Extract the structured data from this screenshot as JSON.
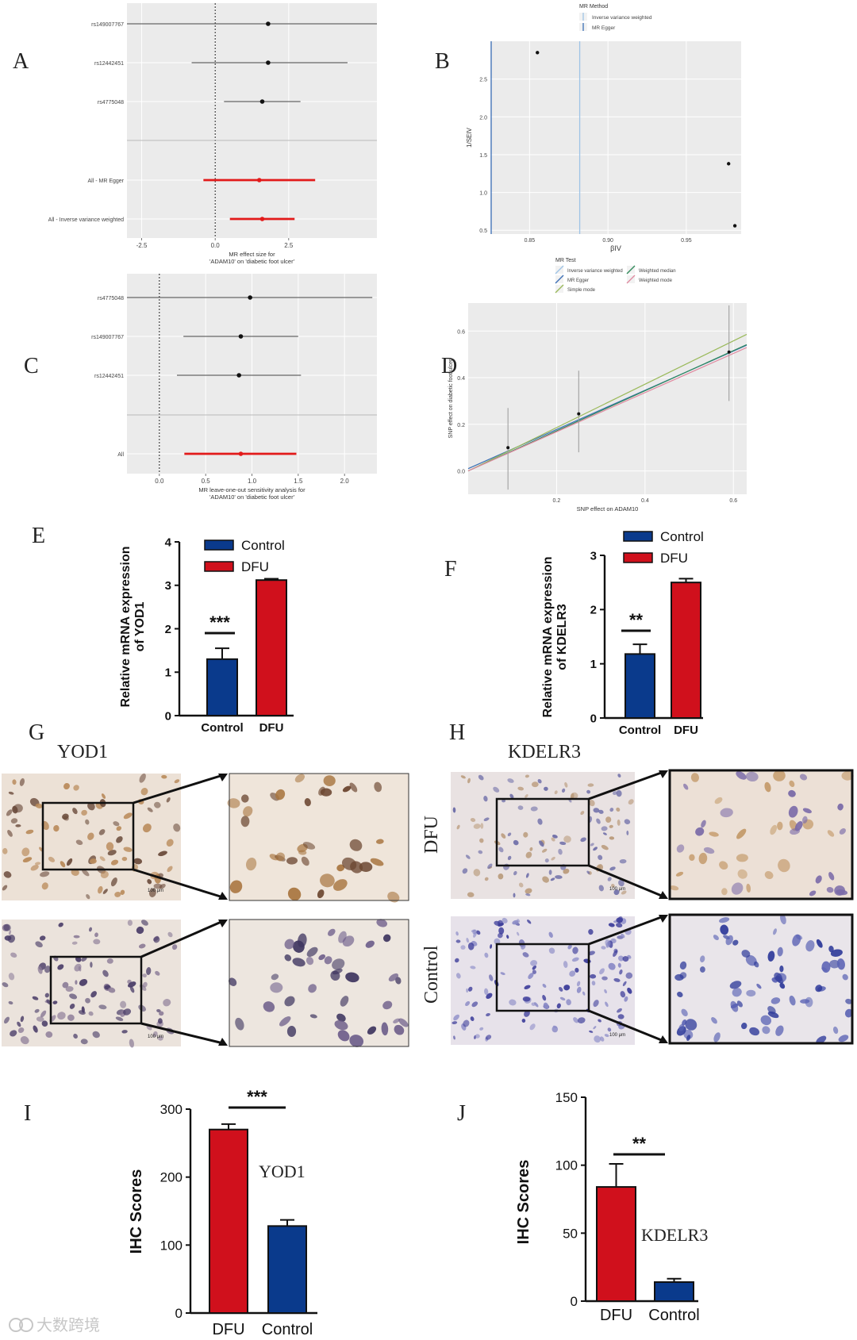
{
  "panels": {
    "a": "A",
    "b": "B",
    "c": "C",
    "d": "D",
    "e": "E",
    "f": "F",
    "g": "G",
    "h": "H",
    "i": "I",
    "j": "J"
  },
  "watermark": "大数跨境",
  "histology": {
    "yod1_title": "YOD1",
    "kdelr3_title": "KDELR3",
    "row_dfu": "DFU",
    "row_control": "Control",
    "scale_bar": "100 μm"
  },
  "colors": {
    "control": "#0a3a8c",
    "dfu": "#d0101c",
    "forest_red": "#e21a1a",
    "plot_bg": "#ebebeb",
    "ivw": "#9ec3e6",
    "egger": "#3b6fb6",
    "simple": "#9ab95a",
    "wmedian": "#2f8a5a",
    "wmode": "#e08aa0"
  },
  "chart_data": [
    {
      "id": "A",
      "type": "scatter",
      "subtype": "forest",
      "categories": [
        "rs149007767",
        "rs12442451",
        "rs4775048",
        "All - MR Egger",
        "All - Inverse variance weighted"
      ],
      "estimate": [
        1.8,
        1.8,
        1.6,
        1.5,
        1.6
      ],
      "lower": [
        -4.8,
        -0.8,
        0.3,
        -0.4,
        0.5
      ],
      "upper": [
        8.2,
        4.5,
        2.9,
        3.4,
        2.7
      ],
      "xlim": [
        -3,
        5.5
      ],
      "xticks": [
        -2.5,
        0.0,
        2.5
      ],
      "xlabel": "MR effect size for 'ADAM10' on 'diabetic foot ulcer'",
      "grid": true
    },
    {
      "id": "B",
      "type": "scatter",
      "subtype": "funnel",
      "x": [
        0.855,
        0.977,
        0.981
      ],
      "y": [
        2.85,
        1.38,
        0.56
      ],
      "xlim": [
        0.825,
        0.985
      ],
      "ylim": [
        0.45,
        3.0
      ],
      "xticks": [
        0.85,
        0.9,
        0.95
      ],
      "yticks": [
        0.5,
        1.0,
        1.5,
        2.0,
        2.5
      ],
      "xlabel": "βIV",
      "ylabel": "1/SEIV",
      "vlines": [
        {
          "name": "Inverse variance weighted",
          "x": 0.882
        },
        {
          "name": "MR Egger",
          "x": 0.8255
        }
      ],
      "legend_title": "MR Method",
      "legend": [
        "Inverse variance weighted",
        "MR Egger"
      ],
      "legend_position": "top",
      "grid": true
    },
    {
      "id": "C",
      "type": "scatter",
      "subtype": "forest",
      "categories": [
        "rs4775048",
        "rs149007767",
        "rs12442451",
        "All"
      ],
      "estimate": [
        0.98,
        0.88,
        0.86,
        0.88
      ],
      "lower": [
        -0.35,
        0.26,
        0.19,
        0.27
      ],
      "upper": [
        2.3,
        1.5,
        1.53,
        1.48
      ],
      "xlim": [
        -0.35,
        2.35
      ],
      "xticks": [
        0.0,
        0.5,
        1.0,
        1.5,
        2.0
      ],
      "xlabel": "MR leave-one-out sensitivity analysis for 'ADAM10' on 'diabetic foot ulcer'",
      "grid": true
    },
    {
      "id": "D",
      "type": "scatter",
      "subtype": "mr-scatter",
      "points": [
        {
          "x": 0.09,
          "y": 0.1,
          "ylo": -0.08,
          "yhi": 0.27
        },
        {
          "x": 0.25,
          "y": 0.245,
          "ylo": 0.08,
          "yhi": 0.43
        },
        {
          "x": 0.59,
          "y": 0.51,
          "ylo": 0.3,
          "yhi": 0.71
        }
      ],
      "lines": [
        {
          "name": "Inverse variance weighted",
          "slope": 0.86
        },
        {
          "name": "MR Egger",
          "slope": 0.84,
          "intercept": 0.01
        },
        {
          "name": "Simple mode",
          "slope": 0.93
        },
        {
          "name": "Weighted median",
          "slope": 0.86
        },
        {
          "name": "Weighted mode",
          "slope": 0.84
        }
      ],
      "xlim": [
        0.0,
        0.63
      ],
      "ylim": [
        -0.1,
        0.72
      ],
      "xticks": [
        0.2,
        0.4,
        0.6
      ],
      "yticks": [
        0.0,
        0.2,
        0.4,
        0.6
      ],
      "xlabel": "SNP effect on ADAM10",
      "ylabel": "SNP effect on diabetic foot ulcer",
      "legend_title": "MR Test",
      "legend": [
        "Inverse variance weighted",
        "MR Egger",
        "Simple mode",
        "Weighted median",
        "Weighted mode"
      ],
      "legend_position": "top",
      "grid": true
    },
    {
      "id": "E",
      "type": "bar",
      "categories": [
        "Control",
        "DFU"
      ],
      "values": [
        1.3,
        3.12
      ],
      "errors": [
        0.25,
        0.03
      ],
      "ylim": [
        0,
        4
      ],
      "yticks": [
        0,
        1,
        2,
        3,
        4
      ],
      "ylabel": "Relative mRNA expression of YOD1",
      "legend": [
        "Control",
        "DFU"
      ],
      "significance": "***",
      "legend_position": "top-right"
    },
    {
      "id": "F",
      "type": "bar",
      "categories": [
        "Control",
        "DFU"
      ],
      "values": [
        1.18,
        2.5
      ],
      "errors": [
        0.18,
        0.07
      ],
      "ylim": [
        0,
        3
      ],
      "yticks": [
        0,
        1,
        2,
        3
      ],
      "ylabel": "Relative mRNA expression of KDELR3",
      "legend": [
        "Control",
        "DFU"
      ],
      "significance": "**",
      "legend_position": "top-right"
    },
    {
      "id": "I",
      "type": "bar",
      "categories": [
        "DFU",
        "Control"
      ],
      "values": [
        270,
        128
      ],
      "errors": [
        8,
        9
      ],
      "ylim": [
        0,
        300
      ],
      "yticks": [
        0,
        100,
        200,
        300
      ],
      "ylabel": "IHC Scores",
      "annotation": "YOD1",
      "significance": "***"
    },
    {
      "id": "J",
      "type": "bar",
      "categories": [
        "DFU",
        "Control"
      ],
      "values": [
        84,
        14
      ],
      "errors": [
        17,
        2.5
      ],
      "ylim": [
        0,
        150
      ],
      "yticks": [
        0,
        50,
        100,
        150
      ],
      "ylabel": "IHC Scores",
      "annotation": "KDELR3",
      "significance": "**"
    }
  ]
}
